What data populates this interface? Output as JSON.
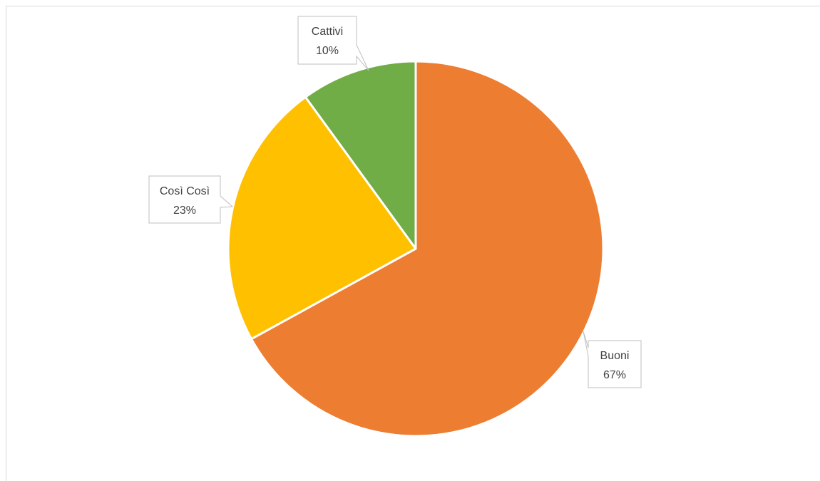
{
  "chart_data": {
    "type": "pie",
    "title": "",
    "slices": [
      {
        "label": "Buoni",
        "value": 67,
        "percent_label": "67%",
        "color": "#ED7D31"
      },
      {
        "label": "Così Così",
        "value": 23,
        "percent_label": "23%",
        "color": "#FFC000"
      },
      {
        "label": "Cattivi",
        "value": 10,
        "percent_label": "10%",
        "color": "#70AD47"
      }
    ],
    "start_angle_deg": 0,
    "direction": "clockwise",
    "slice_border_color": "#ffffff",
    "data_label_style": "callout"
  }
}
